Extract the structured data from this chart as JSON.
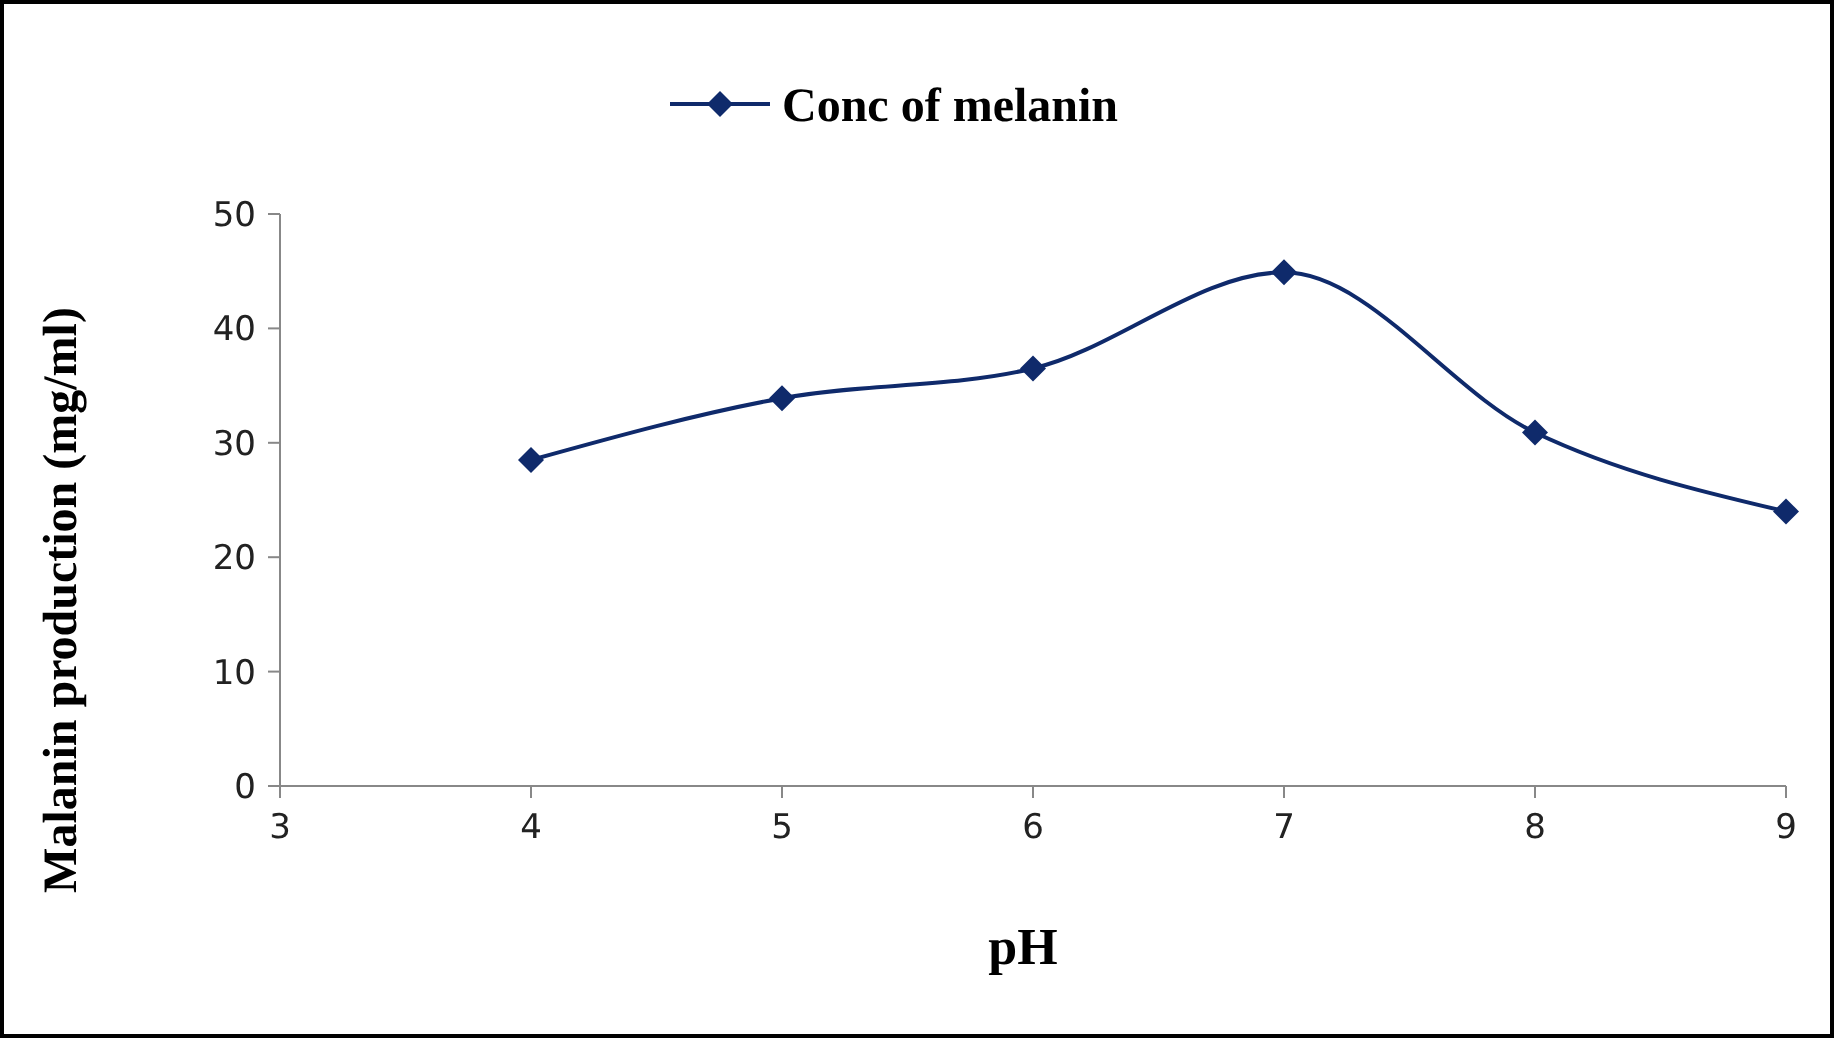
{
  "chart_data": {
    "type": "line",
    "xlabel": "pH",
    "ylabel": "Malanin production (mg/ml)",
    "x": [
      4,
      5,
      6,
      7,
      8,
      9
    ],
    "series": [
      {
        "name": "Conc of melanin",
        "color": "#0f2a6b",
        "values": [
          28.5,
          33.9,
          36.5,
          44.9,
          30.9,
          24.0
        ]
      }
    ],
    "xlim": [
      3,
      9
    ],
    "xticks": [
      3,
      4,
      5,
      6,
      7,
      8,
      9
    ],
    "ylim": [
      0,
      50
    ],
    "yticks": [
      0,
      10,
      20,
      30,
      40,
      50
    ],
    "grid": false,
    "legend": "top",
    "marker": "diamond",
    "line_style": "solid"
  }
}
